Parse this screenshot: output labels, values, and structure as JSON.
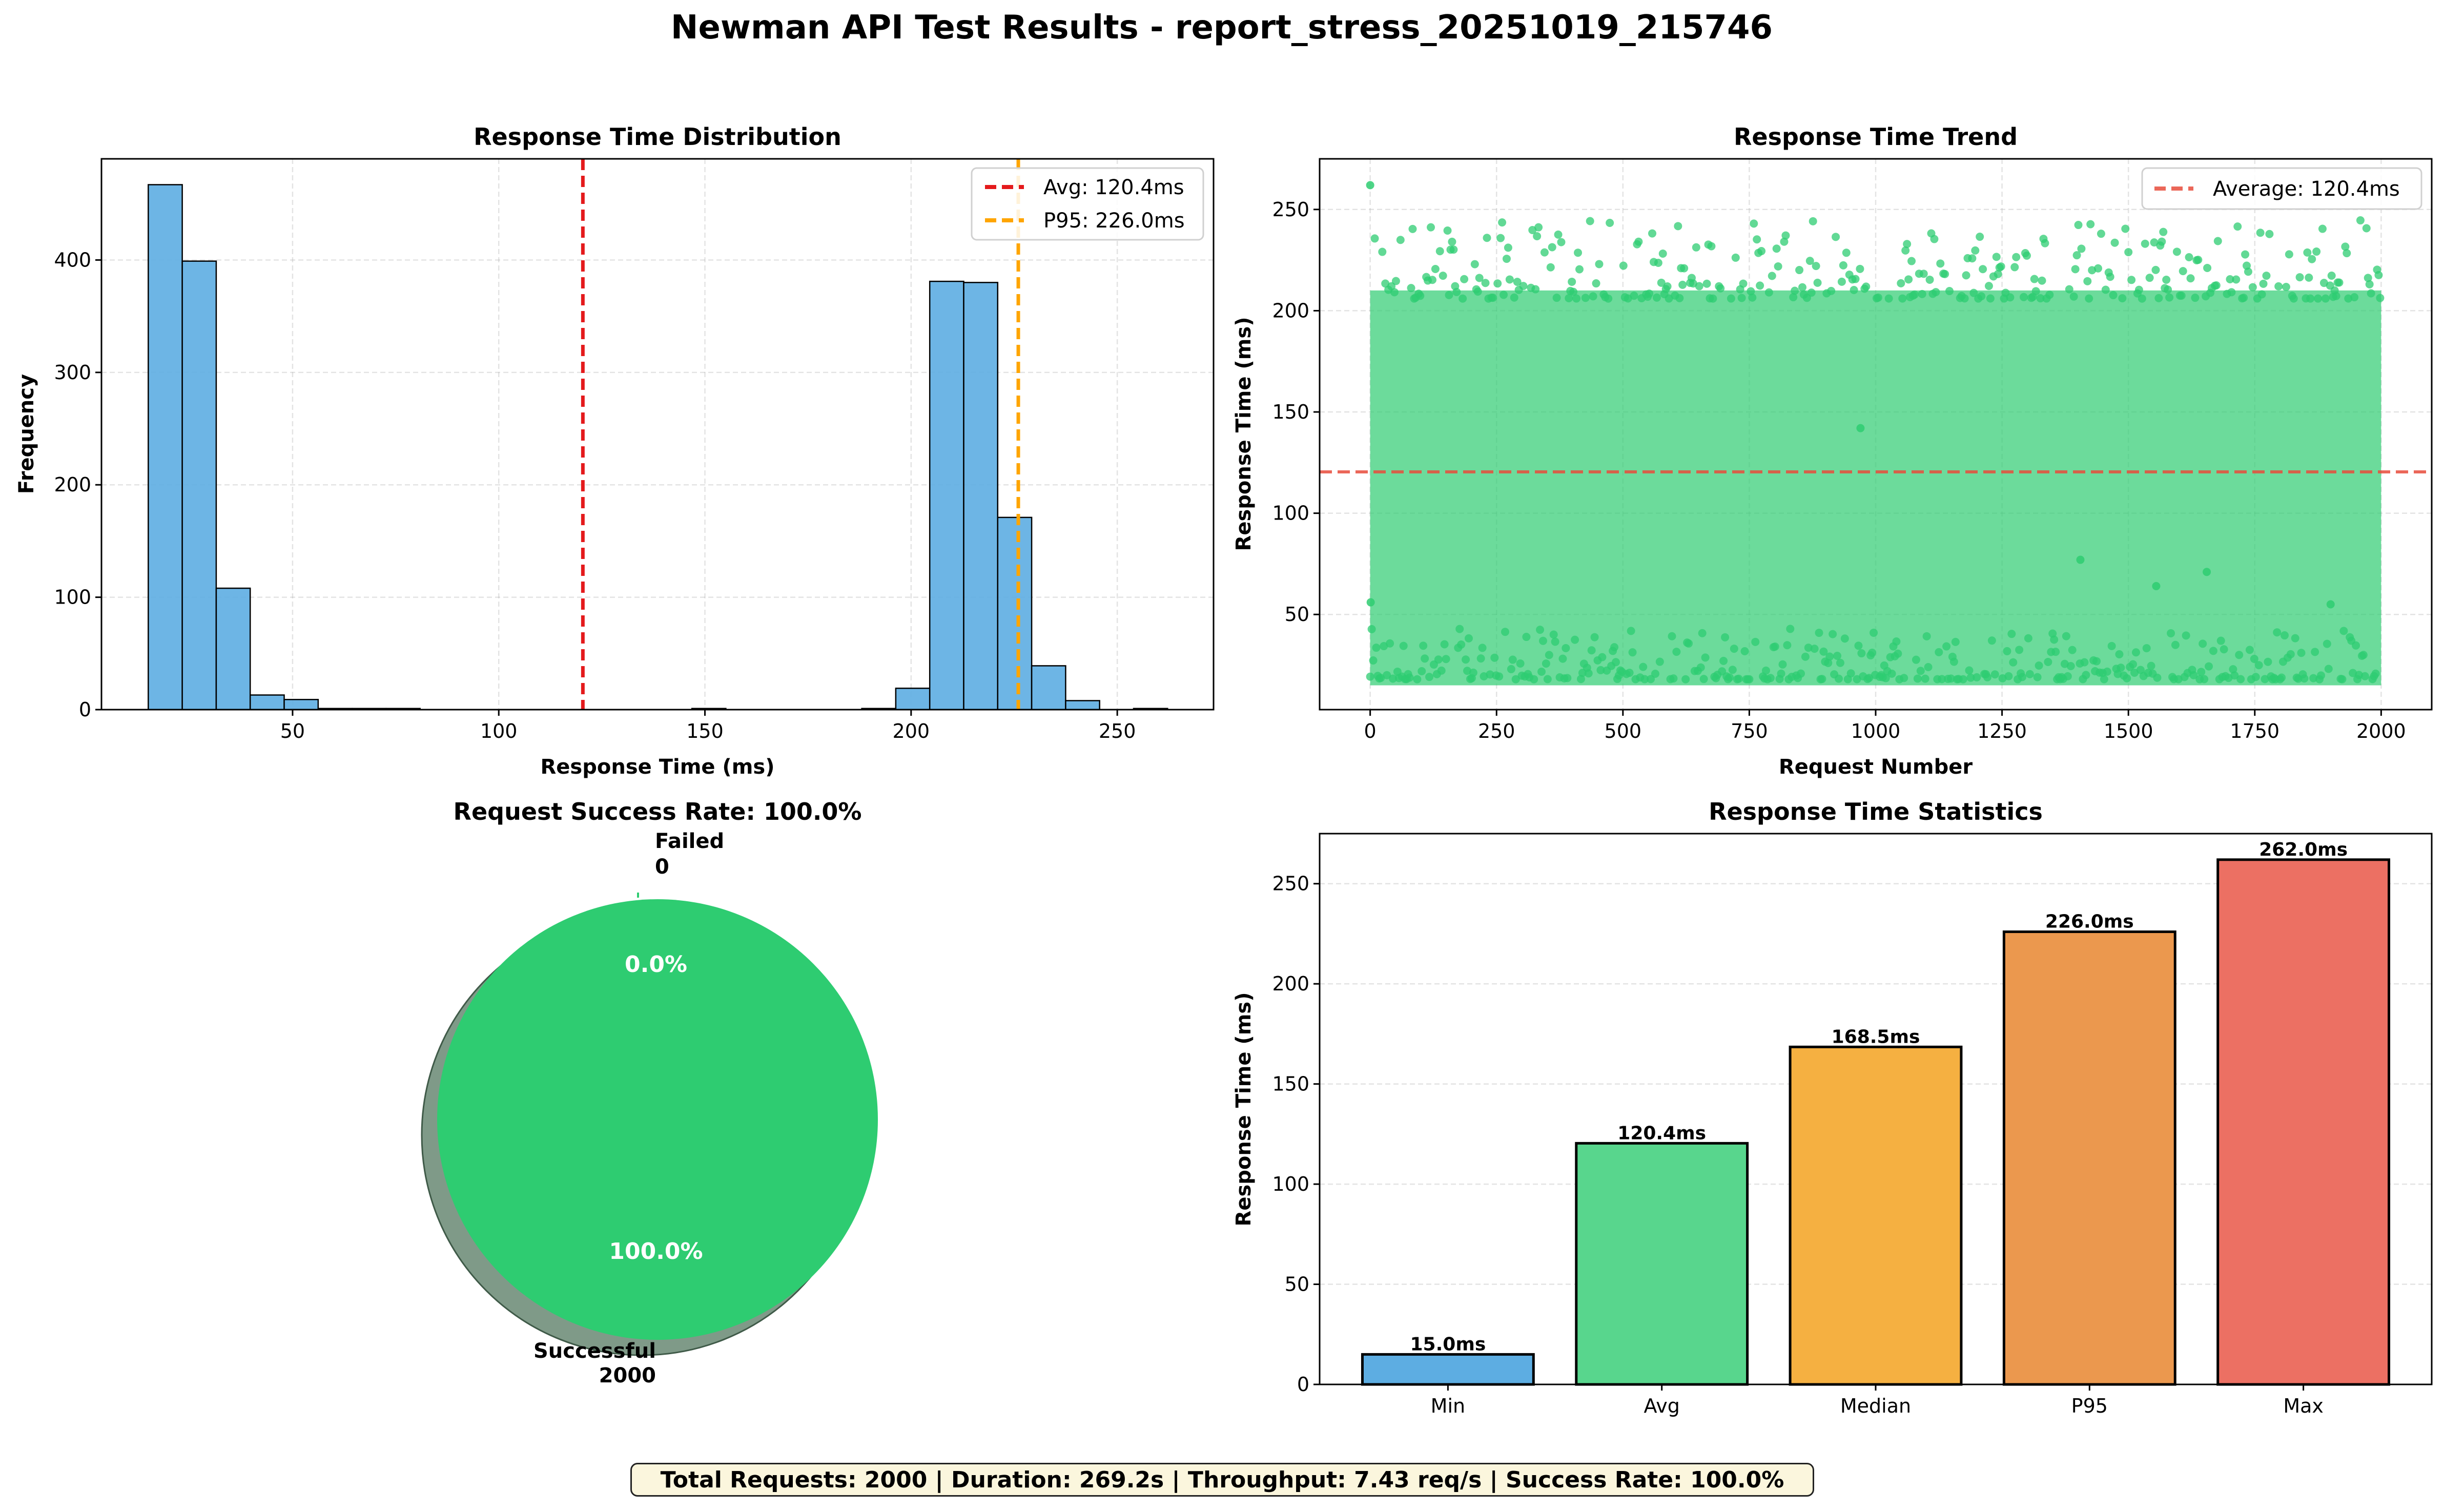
{
  "suptitle": "Newman API Test Results - report_stress_20251019_215746",
  "summary": "Total Requests: 2000 | Duration: 269.2s | Throughput: 7.43 req/s | Success Rate: 100.0%",
  "colors": {
    "hist": "#5dade2",
    "avg": "#e41a1c",
    "p95": "#ffa500",
    "trend": "#2ecc71",
    "avg_line": "#e74c3c",
    "pie_success": "#2ecc71",
    "pie_failed": "#e74c3c",
    "min": "#5dade2",
    "avg_bar": "#58d68d",
    "median": "#f5b041",
    "p95_bar": "#eb984e",
    "max": "#ec7063"
  },
  "chart_data": [
    {
      "type": "bar",
      "title": "Response Time Distribution",
      "xlabel": "Response Time (ms)",
      "ylabel": "Frequency",
      "xlim": [
        3.65,
        273.35
      ],
      "ylim": [
        0,
        490
      ],
      "xticks": [
        50,
        100,
        150,
        200,
        250
      ],
      "yticks": [
        0,
        100,
        200,
        300,
        400
      ],
      "grid": true,
      "legend": "top-right",
      "bin_edges": [
        15.0,
        23.24,
        31.48,
        39.72,
        47.96,
        56.2,
        64.44,
        72.68,
        80.92,
        89.16,
        97.4,
        105.64,
        113.88,
        122.12,
        130.36,
        138.6,
        146.84,
        155.08,
        163.32,
        171.56,
        179.8,
        188.04,
        196.28,
        204.52,
        212.76,
        221.0,
        229.24,
        237.48,
        245.72,
        253.96,
        262.2
      ],
      "counts": [
        467,
        399,
        108,
        13,
        9,
        1,
        1,
        1,
        0,
        0,
        0,
        0,
        0,
        0,
        0,
        0,
        1,
        0,
        0,
        0,
        0,
        1,
        19,
        381,
        380,
        171,
        39,
        8,
        0,
        1
      ],
      "vlines": [
        {
          "name": "Avg: 120.4ms",
          "x": 120.4,
          "color": "#e41a1c"
        },
        {
          "name": "P95: 226.0ms",
          "x": 226.0,
          "color": "#ffa500"
        }
      ]
    },
    {
      "type": "line",
      "title": "Response Time Trend",
      "xlabel": "Request Number",
      "ylabel": "Response Time (ms)",
      "xlim": [
        -100,
        2100
      ],
      "ylim": [
        3,
        275
      ],
      "xticks": [
        0,
        250,
        500,
        750,
        1000,
        1250,
        1500,
        1750,
        2000
      ],
      "yticks": [
        50,
        100,
        150,
        200,
        250
      ],
      "grid": true,
      "legend": "top-right",
      "n_points": 2000,
      "fast_band": [
        15,
        40
      ],
      "slow_band": [
        196,
        245
      ],
      "average": {
        "name": "Average: 120.4ms",
        "y": 120.4
      },
      "notable_points": [
        [
          0,
          262
        ],
        [
          1,
          56
        ],
        [
          970,
          142
        ],
        [
          1405,
          77
        ],
        [
          1555,
          64
        ],
        [
          1655,
          71
        ],
        [
          1900,
          55
        ]
      ]
    },
    {
      "type": "pie",
      "title": "Request Success Rate: 100.0%",
      "slices": [
        {
          "label": "Successful",
          "count": "2000",
          "value": 2000,
          "pct": "100.0%"
        },
        {
          "label": "Failed",
          "count": "0",
          "value": 0,
          "pct": "0.0%"
        }
      ]
    },
    {
      "type": "bar",
      "title": "Response Time Statistics",
      "xlabel": "",
      "ylabel": "Response Time (ms)",
      "ylim": [
        0,
        275
      ],
      "yticks": [
        0,
        50,
        100,
        150,
        200,
        250
      ],
      "grid": true,
      "categories": [
        "Min",
        "Avg",
        "Median",
        "P95",
        "Max"
      ],
      "values": [
        15.0,
        120.4,
        168.5,
        226.0,
        262.0
      ],
      "labels": [
        "15.0ms",
        "120.4ms",
        "168.5ms",
        "226.0ms",
        "262.0ms"
      ]
    }
  ]
}
